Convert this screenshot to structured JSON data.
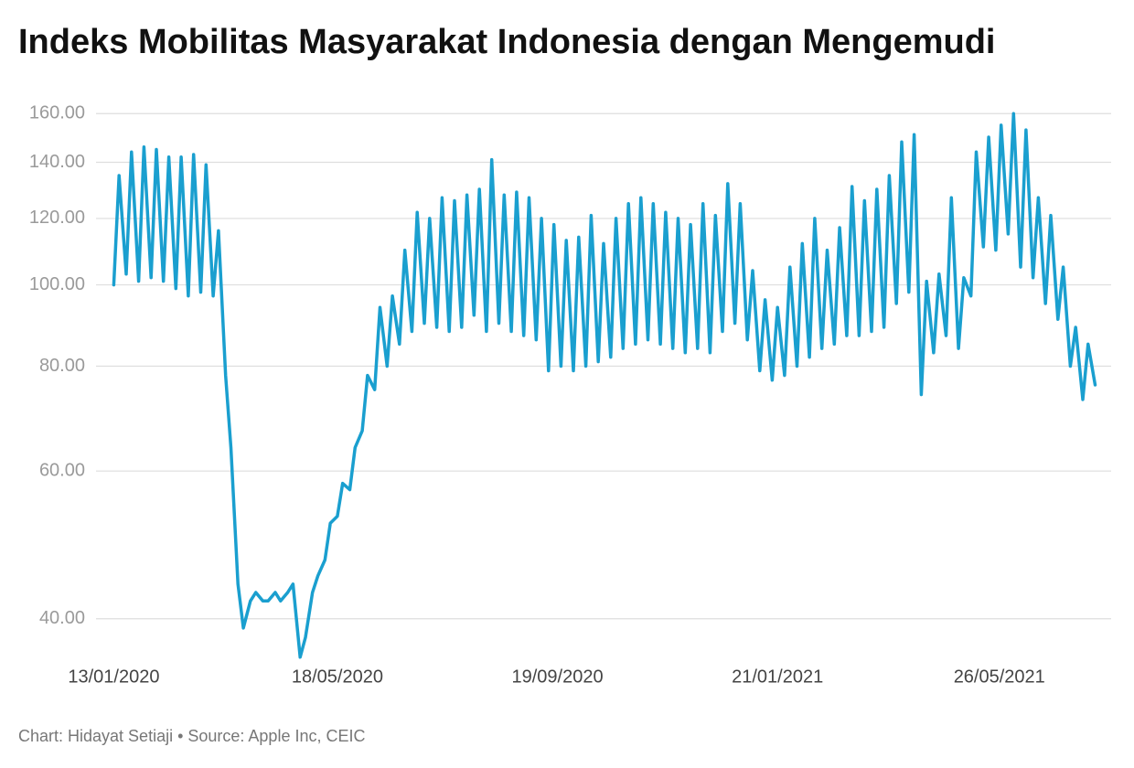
{
  "chart_data": {
    "type": "line",
    "title": "Indeks Mobilitas Masyarakat Indonesia dengan Mengemudi",
    "footer": "Chart: Hidayat Setiaji • Source: Apple Inc, CEIC",
    "color": "#1a9fcf",
    "log_scale": true,
    "grid": true,
    "ylim": [
      35,
      165
    ],
    "yticks": [
      {
        "value": 40,
        "label": "40.00"
      },
      {
        "value": 60,
        "label": "60.00"
      },
      {
        "value": 80,
        "label": "80.00"
      },
      {
        "value": 100,
        "label": "100.00"
      },
      {
        "value": 120,
        "label": "120.00"
      },
      {
        "value": 140,
        "label": "140.00"
      },
      {
        "value": 160,
        "label": "160.00"
      }
    ],
    "xlim": [
      "03/01/2020",
      "28/07/2021"
    ],
    "xticks": [
      "13/01/2020",
      "18/05/2020",
      "19/09/2020",
      "21/01/2021",
      "26/05/2021"
    ],
    "x": [
      "13/01/2020",
      "16/01/2020",
      "20/01/2020",
      "23/01/2020",
      "27/01/2020",
      "30/01/2020",
      "03/02/2020",
      "06/02/2020",
      "10/02/2020",
      "13/02/2020",
      "17/02/2020",
      "20/02/2020",
      "24/02/2020",
      "27/02/2020",
      "02/03/2020",
      "05/03/2020",
      "09/03/2020",
      "12/03/2020",
      "16/03/2020",
      "19/03/2020",
      "23/03/2020",
      "26/03/2020",
      "30/03/2020",
      "02/04/2020",
      "06/04/2020",
      "09/04/2020",
      "13/04/2020",
      "16/04/2020",
      "20/04/2020",
      "23/04/2020",
      "27/04/2020",
      "30/04/2020",
      "04/05/2020",
      "07/05/2020",
      "11/05/2020",
      "14/05/2020",
      "18/05/2020",
      "21/05/2020",
      "25/05/2020",
      "28/05/2020",
      "01/06/2020",
      "04/06/2020",
      "08/06/2020",
      "11/06/2020",
      "15/06/2020",
      "18/06/2020",
      "22/06/2020",
      "25/06/2020",
      "29/06/2020",
      "02/07/2020",
      "06/07/2020",
      "09/07/2020",
      "13/07/2020",
      "16/07/2020",
      "20/07/2020",
      "23/07/2020",
      "27/07/2020",
      "30/07/2020",
      "03/08/2020",
      "06/08/2020",
      "10/08/2020",
      "13/08/2020",
      "17/08/2020",
      "20/08/2020",
      "24/08/2020",
      "27/08/2020",
      "31/08/2020",
      "03/09/2020",
      "07/09/2020",
      "10/09/2020",
      "14/09/2020",
      "17/09/2020",
      "21/09/2020",
      "24/09/2020",
      "28/09/2020",
      "01/10/2020",
      "05/10/2020",
      "08/10/2020",
      "12/10/2020",
      "15/10/2020",
      "19/10/2020",
      "22/10/2020",
      "26/10/2020",
      "29/10/2020",
      "02/11/2020",
      "05/11/2020",
      "09/11/2020",
      "12/11/2020",
      "16/11/2020",
      "19/11/2020",
      "23/11/2020",
      "26/11/2020",
      "30/11/2020",
      "03/12/2020",
      "07/12/2020",
      "10/12/2020",
      "14/12/2020",
      "17/12/2020",
      "21/12/2020",
      "24/12/2020",
      "28/12/2020",
      "31/12/2020",
      "04/01/2021",
      "07/01/2021",
      "11/01/2021",
      "14/01/2021",
      "18/01/2021",
      "21/01/2021",
      "25/01/2021",
      "28/01/2021",
      "01/02/2021",
      "04/02/2021",
      "08/02/2021",
      "11/02/2021",
      "15/02/2021",
      "18/02/2021",
      "22/02/2021",
      "25/02/2021",
      "01/03/2021",
      "04/03/2021",
      "08/03/2021",
      "11/03/2021",
      "15/03/2021",
      "18/03/2021",
      "22/03/2021",
      "25/03/2021",
      "29/03/2021",
      "01/04/2021",
      "05/04/2021",
      "08/04/2021",
      "12/04/2021",
      "15/04/2021",
      "19/04/2021",
      "22/04/2021",
      "26/04/2021",
      "29/04/2021",
      "03/05/2021",
      "06/05/2021",
      "10/05/2021",
      "13/05/2021",
      "17/05/2021",
      "20/05/2021",
      "24/05/2021",
      "27/05/2021",
      "31/05/2021",
      "03/06/2021",
      "07/06/2021",
      "10/06/2021",
      "14/06/2021",
      "17/06/2021",
      "21/06/2021",
      "24/06/2021",
      "28/06/2021",
      "01/07/2021",
      "05/07/2021",
      "08/07/2021",
      "12/07/2021",
      "15/07/2021",
      "19/07/2021"
    ],
    "values": [
      100,
      135,
      103,
      144,
      101,
      146,
      102,
      145,
      101,
      142,
      99,
      142,
      97,
      143,
      98,
      139,
      97,
      116,
      78,
      64,
      44,
      39,
      42,
      43,
      42,
      42,
      43,
      42,
      43,
      44,
      36,
      38,
      43,
      45,
      47,
      52,
      53,
      58,
      57,
      64,
      67,
      78,
      75,
      94,
      80,
      97,
      85,
      110,
      88,
      122,
      90,
      120,
      89,
      127,
      88,
      126,
      89,
      128,
      92,
      130,
      88,
      141,
      90,
      128,
      88,
      129,
      87,
      127,
      86,
      120,
      79,
      118,
      80,
      113,
      79,
      114,
      80,
      121,
      81,
      112,
      82,
      120,
      84,
      125,
      85,
      127,
      86,
      125,
      85,
      122,
      84,
      120,
      83,
      118,
      84,
      125,
      83,
      121,
      88,
      132,
      90,
      125,
      86,
      104,
      79,
      96,
      77,
      94,
      78,
      105,
      80,
      112,
      82,
      120,
      84,
      110,
      85,
      117,
      87,
      131,
      87,
      126,
      88,
      130,
      89,
      135,
      95,
      148,
      98,
      151,
      74,
      101,
      83,
      103,
      87,
      127,
      84,
      102,
      97,
      144,
      111,
      150,
      110,
      155,
      115,
      160,
      105,
      153,
      102,
      127,
      95,
      121,
      91,
      105,
      80,
      89,
      73,
      85,
      76
    ]
  }
}
